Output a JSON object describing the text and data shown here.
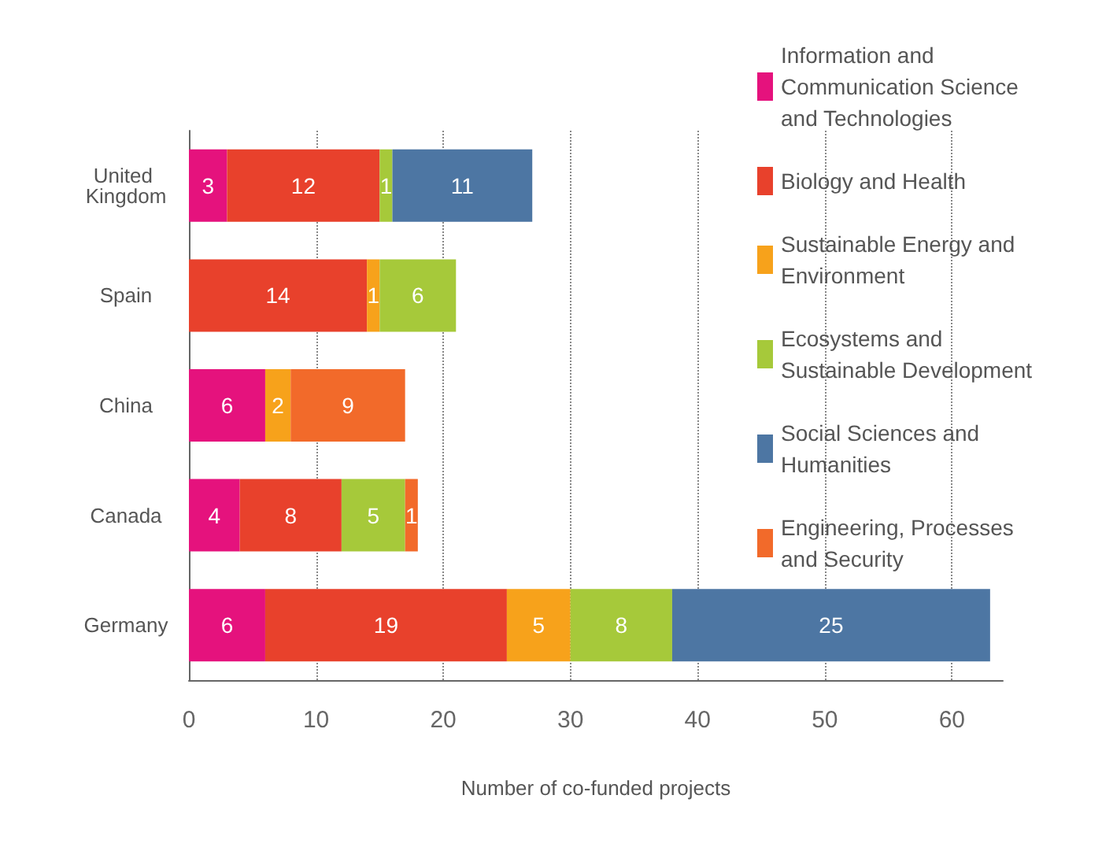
{
  "chart_data": {
    "type": "bar",
    "orientation": "horizontal",
    "stacked": true,
    "data_labels": true,
    "xlabel": "Number of co-funded projects",
    "categories": [
      "United Kingdom",
      "Spain",
      "China",
      "Canada",
      "Germany"
    ],
    "xlim": [
      0,
      64
    ],
    "xticks": [
      0,
      10,
      20,
      30,
      40,
      50,
      60
    ],
    "grid": "x",
    "legend": "right",
    "series": [
      {
        "name": "Information and Communication Science and Technologies",
        "color": "#e5127d",
        "values": [
          3,
          null,
          6,
          4,
          6
        ]
      },
      {
        "name": "Biology and Health",
        "color": "#e8412c",
        "values": [
          12,
          14,
          null,
          8,
          19
        ]
      },
      {
        "name": "Sustainable Energy and Environment",
        "color": "#f7a21b",
        "values": [
          null,
          1,
          2,
          null,
          5
        ]
      },
      {
        "name": "Ecosystems and Sustainable Development",
        "color": "#a6c93a",
        "values": [
          1,
          6,
          null,
          5,
          8
        ]
      },
      {
        "name": "Social Sciences and Humanities",
        "color": "#4d76a3",
        "values": [
          11,
          null,
          null,
          null,
          25
        ]
      },
      {
        "name": "Engineering, Processes and Security",
        "color": "#f26a2a",
        "values": [
          null,
          null,
          9,
          1,
          null
        ]
      }
    ]
  }
}
